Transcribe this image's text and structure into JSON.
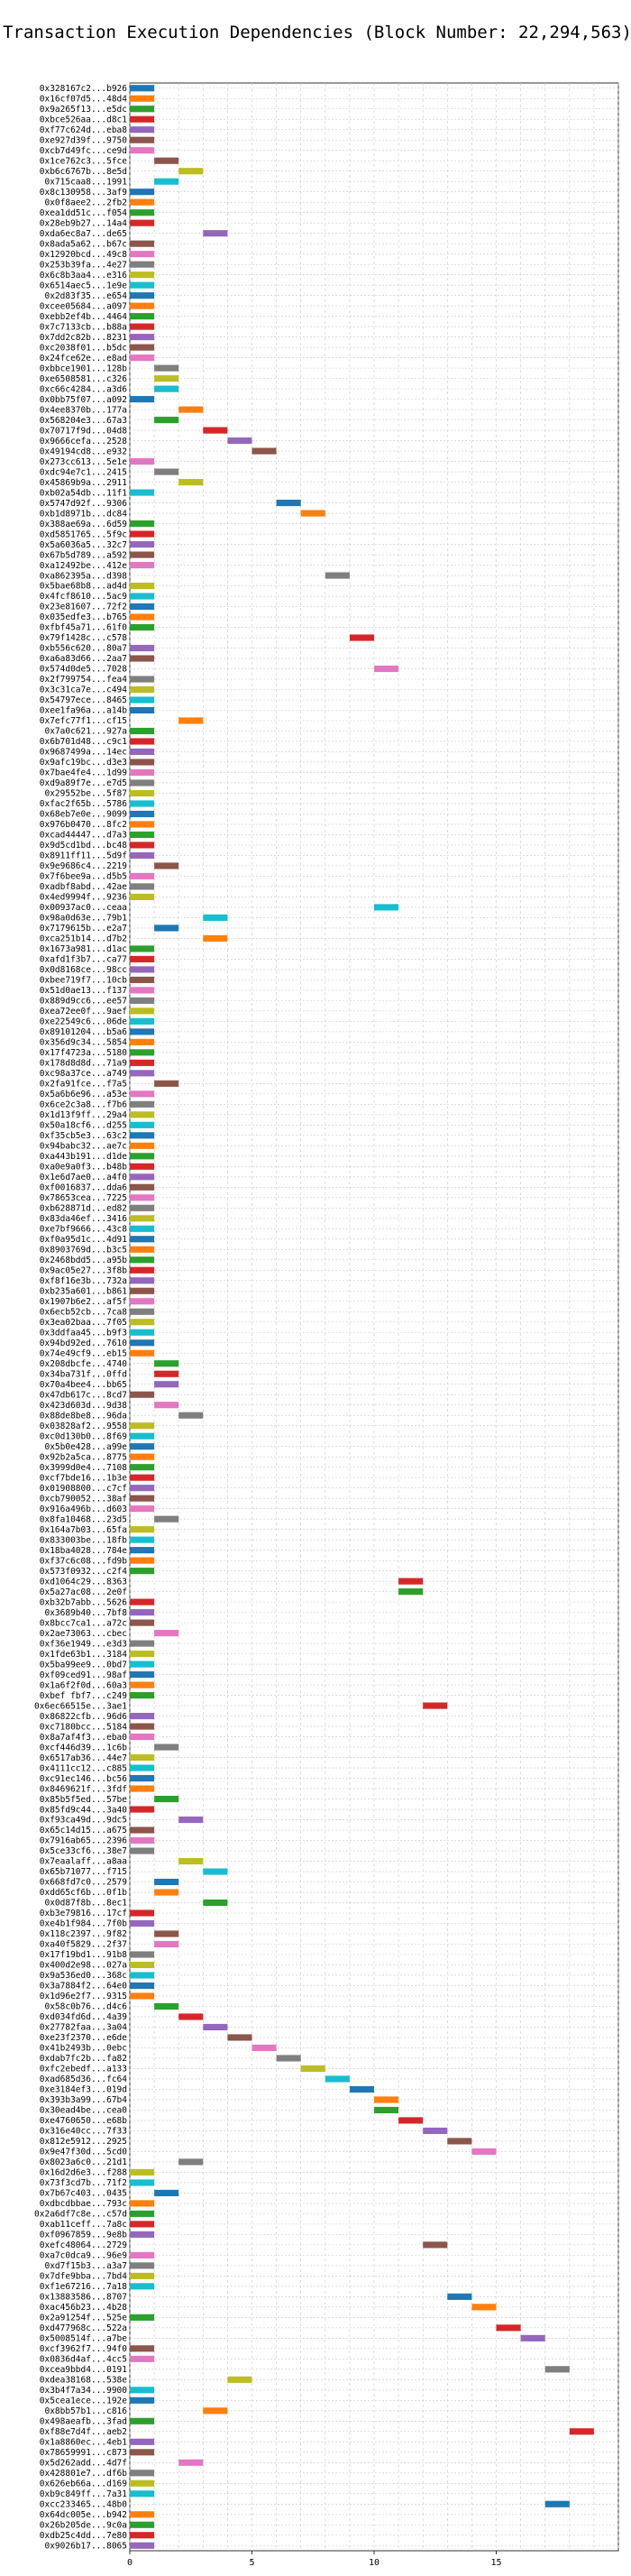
{
  "chart_data": {
    "type": "bar",
    "orientation": "horizontal-gantt",
    "title": "Transaction Execution Dependencies (Block Number: 22,294,563)",
    "xlabel": "",
    "ylabel": "",
    "xlim": [
      0,
      20
    ],
    "xticks": [
      0,
      5,
      10,
      15
    ],
    "grid": true,
    "legend": "none",
    "bar_duration": 1,
    "palette": [
      "#1f77b4",
      "#ff7f0e",
      "#2ca02c",
      "#d62728",
      "#9467bd",
      "#8c564b",
      "#e377c2",
      "#7f7f7f",
      "#bcbd22",
      "#17becf"
    ],
    "transactions": [
      "0x328167c2...b926",
      "0x16cf07d5...48d4",
      "0x9a265f13...e5dc",
      "0xbce526aa...d8c1",
      "0xf77c624d...eba8",
      "0xe927d39f...9750",
      "0xcb7d49fc...ce9d",
      "0x1ce762c3...5fce",
      "0xb6c6767b...8e5d",
      "0x715caa8...1991",
      "0x8c130958...3af9",
      "0x0f8aee2...2fb2",
      "0xea1dd51c...f054",
      "0x28eb9b27...14a4",
      "0xda6ec8a7...de65",
      "0x8ada5a62...b67c",
      "0x12920bcd...49c8",
      "0x253b39fa...4e27",
      "0x6c8b3aa4...e316",
      "0x6514aec5...1e9e",
      "0x2d83f35...e654",
      "0xcee05684...a097",
      "0xebb2ef4b...4464",
      "0x7c7133cb...b88a",
      "0x7dd2c82b...8231",
      "0xc2038f01...b5dc",
      "0x24fce62e...e8ad",
      "0xbbce1901...128b",
      "0xe6508581...c326",
      "0xc66c4284...a3d6",
      "0x0bb75f07...a092",
      "0x4ee8370b...177a",
      "0x568204e3...67a3",
      "0x70717f9d...04d8",
      "0x9666cefa...2528",
      "0x49194cd8...e932",
      "0x273cc613...5e1e",
      "0xdc94e7c1...2415",
      "0x45869b9a...2911",
      "0xb02a54db...11f1",
      "0x5747d92f...9306",
      "0xb1d8971b...dc84",
      "0x388ae69a...6d59",
      "0xd5851765...5f9c",
      "0x5a6036a5...32c7",
      "0x67b5d789...a592",
      "0xa12492be...412e",
      "0xa862395a...d398",
      "0x5bae68b8...ad4d",
      "0x4fcf8610...5ac9",
      "0x23e81607...72f2",
      "0x035edfe3...b765",
      "0xfbf45a71...61f0",
      "0x79f1428c...c578",
      "0xb556c620...80a7",
      "0xa6a83d66...2aa7",
      "0x574d0de5...7028",
      "0x2f799754...fea4",
      "0x3c31ca7e...c494",
      "0x54797ece...8465",
      "0xee1fa96a...a14b",
      "0x7efc77f1...cf15",
      "0x7a0c621...927a",
      "0x6b701d48...c9c1",
      "0x9687499a...14ec",
      "0x9afc19bc...d3e3",
      "0x7bae4fe4...1d99",
      "0xd9a89f7e...e7d5",
      "0x29552be...5f87",
      "0xfac2f65b...5786",
      "0x68eb7e0e...9099",
      "0x976b0470...8fc2",
      "0xcad44447...d7a3",
      "0x9d5cd1bd...bc48",
      "0x8911ff11...5d9f",
      "0x9e9686c4...2219",
      "0x7f6bee9a...d5b5",
      "0xadbf8abd...42ae",
      "0x4ed9994f...9236",
      "0x00937ac0...ceaa",
      "0x98a0d63e...79b1",
      "0x7179615b...e2a7",
      "0xca251b14...d7b2",
      "0x1673a981...d1ac",
      "0xafd1f3b7...ca77",
      "0x0d8168ce...98cc",
      "0xbee719f7...10cb",
      "0x51d0ae13...f137",
      "0x889d9cc6...ee57",
      "0xea72ee0f...9aef",
      "0xe22549c6...06de",
      "0x89101204...b5a6",
      "0x356d9c34...5854",
      "0x17f4723a...5180",
      "0x178d8d8d...71a9",
      "0xc98a37ce...a749",
      "0x2fa91fce...f7a5",
      "0x5a6b6e96...a53e",
      "0x6ce2c3a8...f7b6",
      "0x1d13f9ff...29a4",
      "0x50a18cf6...d255",
      "0xf35cb5e3...63c2",
      "0x94babc32...ae7c",
      "0xa443b191...d1de",
      "0xa0e9a0f3...b48b",
      "0x1e6d7ae0...a4f0",
      "0xf0016837...dda6",
      "0x78653cea...7225",
      "0xb628871d...ed82",
      "0x83da46ef...3416",
      "0xe7bf9666...43c8",
      "0xf0a95d1c...4d91",
      "0x8903769d...b3c5",
      "0x2468bdd5...a95b",
      "0x9ac05e27...3f8b",
      "0xf8f16e3b...732a",
      "0xb235a601...b861",
      "0x1907b6e2...af5f",
      "0x6ecb52cb...7ca8",
      "0x3ea02baa...7f05",
      "0x3ddfaa45...b9f3",
      "0x94bd92ed...7610",
      "0x74e49cf9...eb15",
      "0x208dbcfe...4740",
      "0x34ba731f...0ffd",
      "0x70a4bee4...bb65",
      "0x47db617c...8cd7",
      "0x423d603d...9d38",
      "0x88de8be8...96da",
      "0x03828af2...9558",
      "0xc0d130b0...8f69",
      "0x5b0e428...a99e",
      "0x92b2a5ca...8775",
      "0x3999d0e4...7108",
      "0xcf7bde16...1b3e",
      "0x01908800...c7cf",
      "0xcb790052...38af",
      "0x916a496b...d603",
      "0x8fa10468...23d5",
      "0x164a7b03...65fa",
      "0x833003be...18fb",
      "0x18ba4028...784e",
      "0xf37c6c08...fd9b",
      "0x573f0932...c2f4",
      "0xd1064c29...8363",
      "0x5a27ac08...2e0f",
      "0xb32b7abb...5626",
      "0x3689b40...7bf8",
      "0x8bcc7ca1...a72c",
      "0x2ae73063...cbec",
      "0xf36e1949...e3d3",
      "0x1fde63b1...3184",
      "0x5ba99ee9...0bd7",
      "0xf09ced91...98af",
      "0x1a6f2f0d...60a3",
      "0xbef fbf7...c249",
      "0x6ec66515e...3ae1",
      "0x86822cfb...96d6",
      "0xc7180bcc...5184",
      "0x8a7af4f3...eba0",
      "0xcf446d39...1c6b",
      "0x6517ab36...44e7",
      "0x4111cc12...c885",
      "0xc91ec146...bc56",
      "0x8469621f...3fdf",
      "0x85b5f5ed...57be",
      "0x85fd9c44...3a40",
      "0xf93ca49d...9dc5",
      "0x65c14d15...a675",
      "0x7916ab65...2396",
      "0x5ce33cf6...38e7",
      "0x7eaalaff...a8aa",
      "0x65b71077...f715",
      "0x668fd7c0...2579",
      "0xdd65cf6b...0f1b",
      "0x0d87f8b...8ec1",
      "0xb3e79816...17cf",
      "0xe4b1f984...7f0b",
      "0x118c2397...9f82",
      "0xa40f5829...2f37",
      "0x17f19bd1...91b8",
      "0x400d2e98...027a",
      "0x9a536ed0...368c",
      "0x3a7884f2...64e0",
      "0x1d96e2f7...9315",
      "0x58c0b76...d4c6",
      "0xd034fd6d...4a39",
      "0x27782faa...3a04",
      "0xe23f2370...e6de",
      "0x41b2493b...0ebc",
      "0xdab7fc2b...fa82",
      "0xfc2ebedf...a133",
      "0xad685d36...fc64",
      "0xe3184ef3...019d",
      "0x393b3a99...67b4",
      "0x30ead4be...cea0",
      "0xe4760650...e68b",
      "0x316e40cc...7f33",
      "0x812e5912...2925",
      "0x9e47f30d...5cd0",
      "0x8023a6c0...21d1",
      "0x16d2d6e3...f288",
      "0x73f3cd7b...71f2",
      "0x7b67c403...0435",
      "0xdbcdbbae...793c",
      "0x2a6df7c8e...c57d",
      "0xab11ceff...7a8c",
      "0xf0967859...9e8b",
      "0xefc48064...2729",
      "0xa7c0dca9...96e9",
      "0xd7f15b3...a3a7",
      "0x7dfe9bba...7bd4",
      "0xf1e67216...7a18",
      "0x13883586...8707",
      "0xac456b23...4b28",
      "0x2a91254f...525e",
      "0xd477968c...522a",
      "0x5008514f...a7be",
      "0xcf3962f7...94f0",
      "0x0836d4af...4cc5",
      "0xcea9bbd4...0191",
      "0xdea38168...538e",
      "0x3b4f7a34...9900",
      "0x5cea1ece...192e",
      "0x8bb57b1...c816",
      "0x498aeafb...3fad",
      "0xf88e7d4f...aeb2",
      "0x1a8860ec...4eb1",
      "0x78659991...c873",
      "0x5d262add...4d7f",
      "0x428801e7...df6b",
      "0x626eb66a...d169",
      "0xb9c849ff...7a31",
      "0xcc233465...48b0",
      "0x64dc005e...b942",
      "0x26b205de...9c0a",
      "0xdb25c4dd...7e80",
      "0x9026b17...8065"
    ],
    "start_times": [
      0,
      0,
      0,
      0,
      0,
      0,
      0,
      1,
      2,
      1,
      0,
      0,
      0,
      0,
      3,
      0,
      0,
      0,
      0,
      0,
      0,
      0,
      0,
      0,
      0,
      0,
      0,
      1,
      1,
      1,
      0,
      2,
      1,
      3,
      4,
      5,
      0,
      1,
      2,
      0,
      6,
      7,
      0,
      0,
      0,
      0,
      0,
      8,
      0,
      0,
      0,
      0,
      0,
      9,
      0,
      0,
      10,
      0,
      0,
      0,
      0,
      2,
      0,
      0,
      0,
      0,
      0,
      0,
      0,
      0,
      0,
      0,
      0,
      0,
      0,
      1,
      0,
      0,
      0,
      10,
      3,
      1,
      3,
      0,
      0,
      0,
      0,
      0,
      0,
      0,
      0,
      0,
      0,
      0,
      0,
      0,
      1,
      0,
      0,
      0,
      0,
      0,
      0,
      0,
      0,
      0,
      0,
      0,
      0,
      0,
      0,
      0,
      0,
      0,
      0,
      0,
      0,
      0,
      0,
      0,
      0,
      0,
      0,
      1,
      1,
      1,
      0,
      1,
      2,
      0,
      0,
      0,
      0,
      0,
      0,
      0,
      0,
      0,
      1,
      0,
      0,
      0,
      0,
      0,
      11,
      11,
      0,
      0,
      0,
      1,
      0,
      0,
      0,
      0,
      0,
      0,
      12,
      0,
      0,
      0,
      1,
      0,
      0,
      0,
      0,
      1,
      0,
      2,
      0,
      0,
      0,
      2,
      3,
      1,
      1,
      3,
      0,
      0,
      1,
      1,
      0,
      0,
      0,
      0,
      0,
      1,
      2,
      3,
      4,
      5,
      6,
      7,
      8,
      9,
      10,
      10,
      11,
      12,
      13,
      14,
      2,
      0,
      0,
      1,
      0,
      0,
      0,
      0,
      12,
      0,
      0,
      0,
      0,
      13,
      14,
      0,
      15,
      16,
      0,
      0,
      17,
      4,
      0,
      0,
      3,
      0,
      18,
      0,
      0,
      2,
      0,
      0,
      0,
      17,
      0
    ],
    "colors": [
      0,
      1,
      2,
      3,
      4,
      5,
      6,
      5,
      8,
      9,
      0,
      1,
      2,
      3,
      4,
      5,
      6,
      7,
      8,
      9,
      0,
      1,
      2,
      3,
      4,
      5,
      6,
      7,
      8,
      9,
      0,
      1,
      2,
      3,
      4,
      5,
      6,
      7,
      8,
      9,
      0,
      1,
      2,
      3,
      4,
      5,
      6,
      7,
      8,
      9,
      0,
      1,
      2,
      3,
      4,
      5,
      6,
      7,
      8,
      9,
      0,
      1,
      2,
      3,
      4,
      5,
      6,
      7,
      8,
      9,
      0,
      1,
      2,
      3,
      4,
      5,
      6,
      7,
      8,
      9,
      9,
      0,
      1,
      2,
      3,
      4,
      5,
      6,
      7,
      8,
      9,
      0,
      1,
      2,
      3,
      4,
      5,
      6,
      7,
      8,
      9,
      0,
      1,
      2,
      3,
      4,
      5,
      6,
      7,
      8,
      9,
      0,
      1,
      2,
      3,
      4,
      5,
      6,
      7,
      8,
      9,
      0,
      1,
      2,
      3,
      4,
      5,
      6,
      7,
      8,
      9,
      0,
      1,
      2,
      3,
      4,
      5,
      6,
      7,
      8,
      9,
      0,
      1,
      2,
      3,
      2,
      3,
      4,
      5,
      6,
      7,
      8,
      9,
      0,
      1,
      2,
      3,
      4,
      5,
      6,
      7,
      8,
      9,
      0,
      1,
      2,
      3,
      4,
      5,
      6,
      7,
      8,
      9,
      0,
      1,
      2,
      3,
      4,
      5,
      6,
      7,
      8,
      9,
      0,
      1,
      2,
      3,
      4,
      5,
      6,
      7,
      8,
      9,
      0,
      1,
      2,
      3,
      4,
      5,
      6,
      7,
      8,
      9,
      0,
      1,
      2,
      3,
      4,
      5,
      6,
      7,
      8,
      9,
      0,
      1,
      2,
      3,
      4,
      5,
      6,
      7,
      8,
      9,
      0,
      1,
      2,
      3,
      4,
      5,
      6,
      7,
      8,
      9,
      0,
      1,
      2,
      3,
      4,
      5,
      6,
      7,
      8,
      9,
      0,
      1,
      2,
      3,
      4,
      5,
      6,
      7,
      8,
      9,
      0,
      1,
      2,
      3,
      4,
      5,
      6,
      7,
      8,
      9,
      0,
      1,
      2,
      3,
      4,
      5,
      6,
      7,
      8,
      9,
      0,
      1,
      2,
      3,
      4,
      5,
      6,
      7,
      8,
      9,
      0,
      1,
      2,
      3,
      4,
      5,
      6,
      7,
      8,
      9,
      0,
      1,
      2,
      3,
      4,
      5,
      6,
      7,
      8,
      9
    ]
  }
}
